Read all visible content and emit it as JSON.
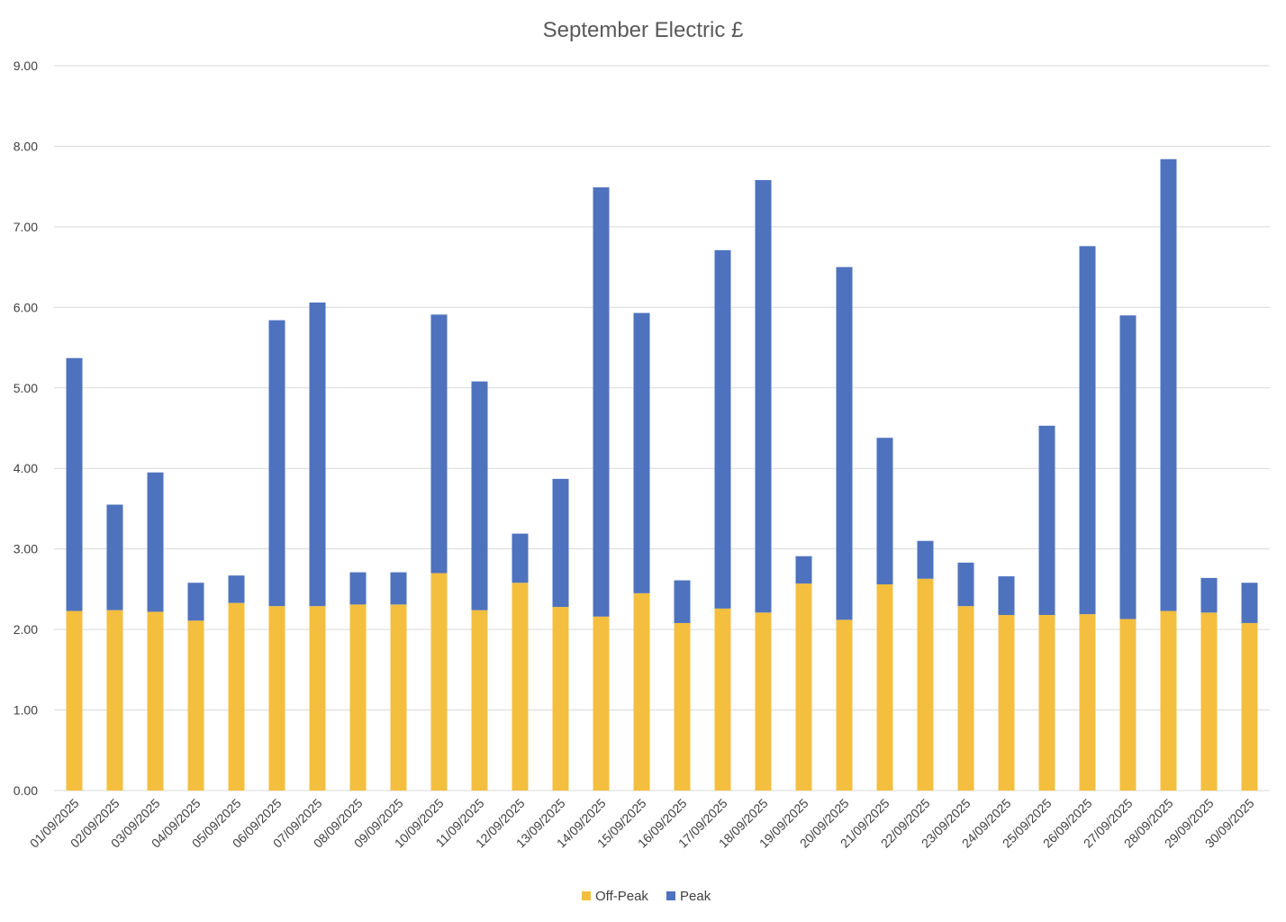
{
  "chart_data": {
    "type": "bar",
    "stacked": true,
    "title": "September Electric £",
    "xlabel": "",
    "ylabel": "",
    "ylim": [
      0,
      9
    ],
    "yticks": [
      "0.00",
      "1.00",
      "2.00",
      "3.00",
      "4.00",
      "5.00",
      "6.00",
      "7.00",
      "8.00",
      "9.00"
    ],
    "grid": true,
    "legend_position": "bottom",
    "categories": [
      "01/09/2025",
      "02/09/2025",
      "03/09/2025",
      "04/09/2025",
      "05/09/2025",
      "06/09/2025",
      "07/09/2025",
      "08/09/2025",
      "09/09/2025",
      "10/09/2025",
      "11/09/2025",
      "12/09/2025",
      "13/09/2025",
      "14/09/2025",
      "15/09/2025",
      "16/09/2025",
      "17/09/2025",
      "18/09/2025",
      "19/09/2025",
      "20/09/2025",
      "21/09/2025",
      "22/09/2025",
      "23/09/2025",
      "24/09/2025",
      "25/09/2025",
      "26/09/2025",
      "27/09/2025",
      "28/09/2025",
      "29/09/2025",
      "30/09/2025"
    ],
    "series": [
      {
        "name": "Off-Peak",
        "color": "#F4BF3F",
        "values": [
          2.23,
          2.24,
          2.22,
          2.11,
          2.33,
          2.29,
          2.29,
          2.31,
          2.31,
          2.7,
          2.24,
          2.58,
          2.28,
          2.16,
          2.45,
          2.08,
          2.26,
          2.21,
          2.57,
          2.12,
          2.56,
          2.63,
          2.29,
          2.18,
          2.18,
          2.19,
          2.13,
          2.23,
          2.21,
          2.08
        ]
      },
      {
        "name": "Peak",
        "color": "#4E72BE",
        "values": [
          3.14,
          1.31,
          1.73,
          0.47,
          0.34,
          3.55,
          3.77,
          0.4,
          0.4,
          3.21,
          2.84,
          0.61,
          1.59,
          5.33,
          3.48,
          0.53,
          4.45,
          5.37,
          0.34,
          4.38,
          1.82,
          0.47,
          0.54,
          0.48,
          2.35,
          4.57,
          3.77,
          5.61,
          0.43,
          0.5
        ]
      }
    ]
  }
}
